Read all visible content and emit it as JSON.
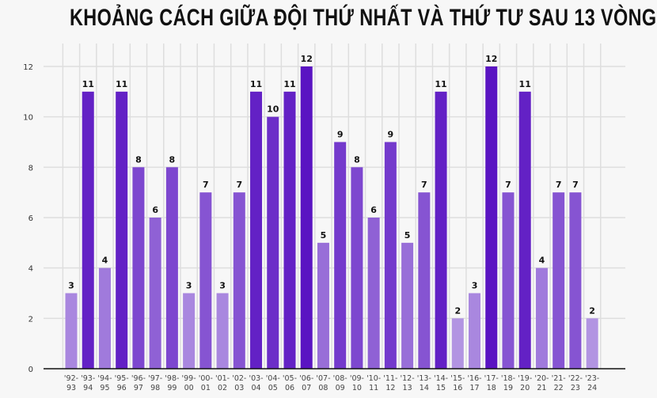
{
  "chart_data": {
    "type": "bar",
    "title": "KHOẢNG CÁCH GIỮA ĐỘI THỨ NHẤT VÀ THỨ TƯ SAU 13 VÒNG",
    "xlabel": "",
    "ylabel": "",
    "ylim": [
      0,
      13
    ],
    "yticks": [
      0,
      2,
      4,
      6,
      8,
      10,
      12
    ],
    "grid": true,
    "categories": [
      "'92-93",
      "'93-94",
      "'94-95",
      "'95-96",
      "'96-97",
      "'97-98",
      "'98-99",
      "'99-00",
      "'00-01",
      "'01-02",
      "'02-03",
      "'03-04",
      "'04-05",
      "'05-06",
      "'06-07",
      "'07-08",
      "'08-09",
      "'09-10",
      "'10-11",
      "'11-12",
      "'12-13",
      "'13-14",
      "'14-15",
      "'15-16",
      "'16-17",
      "'17-18",
      "'18-19",
      "'19-20",
      "'20-21",
      "'21-22",
      "'22-23",
      "'23-24"
    ],
    "values": [
      3,
      11,
      4,
      11,
      8,
      6,
      8,
      3,
      7,
      3,
      7,
      11,
      10,
      11,
      12,
      5,
      9,
      8,
      6,
      9,
      5,
      7,
      11,
      2,
      3,
      12,
      7,
      11,
      4,
      7,
      7,
      2
    ],
    "colors": {
      "high": "#5a14c2",
      "low": "#b294e2",
      "axis": "#111111",
      "grid": "#dedede"
    }
  }
}
